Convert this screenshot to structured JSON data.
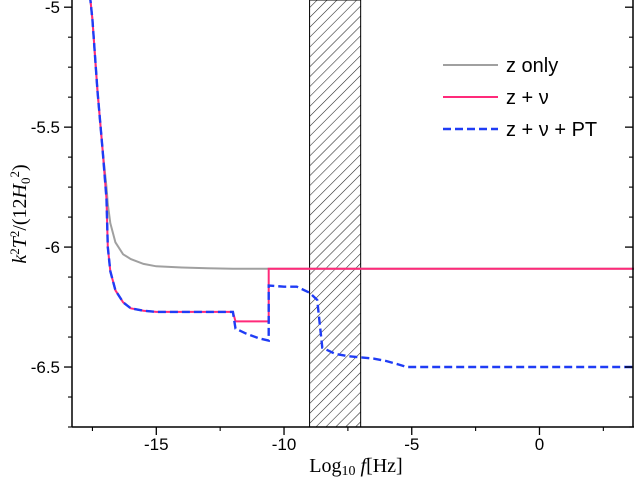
{
  "chart_data": {
    "type": "line",
    "xlabel": "Log₁₀ f[Hz]",
    "ylabel": "k²T²/(12H₀²)",
    "xlim": [
      -18.3,
      3.7
    ],
    "ylim": [
      -6.75,
      -4.97
    ],
    "x_ticks": [
      -15,
      -10,
      -5,
      0
    ],
    "x_tick_labels": [
      "-15",
      "-10",
      "-5",
      "0"
    ],
    "y_ticks": [
      -5,
      -5.5,
      -6,
      -6.5
    ],
    "y_tick_labels": [
      "-5",
      "-5.5",
      "-6",
      "-6.5"
    ],
    "shaded_band": {
      "x": [
        -9.0,
        -7.0
      ],
      "pattern": "hatched"
    },
    "grid": false,
    "legend_position": "top-right",
    "series": [
      {
        "name": "z only",
        "color": "#a0a0a0",
        "style": "solid",
        "x": [
          -17.6,
          -17.5,
          -17.3,
          -17.1,
          -16.95,
          -16.9,
          -16.8,
          -16.6,
          -16.3,
          -16.0,
          -15.5,
          -15.0,
          -14.0,
          -13.0,
          -12.0,
          -11.0,
          -10.6,
          3.7
        ],
        "y": [
          -4.95,
          -5.05,
          -5.35,
          -5.6,
          -5.75,
          -5.82,
          -5.9,
          -5.98,
          -6.03,
          -6.05,
          -6.07,
          -6.08,
          -6.085,
          -6.088,
          -6.09,
          -6.09,
          -6.09,
          -6.09
        ]
      },
      {
        "name": "z + ν",
        "color": "#ff2a7a",
        "style": "solid",
        "x": [
          -17.6,
          -17.5,
          -17.3,
          -17.1,
          -16.95,
          -16.9,
          -16.8,
          -16.6,
          -16.3,
          -16.0,
          -15.5,
          -15.0,
          -14.5,
          -14.0,
          -13.0,
          -12.0,
          -11.9,
          -10.6,
          -10.6,
          3.7
        ],
        "y": [
          -4.95,
          -5.05,
          -5.35,
          -5.6,
          -5.8,
          -6.0,
          -6.1,
          -6.18,
          -6.23,
          -6.255,
          -6.265,
          -6.27,
          -6.27,
          -6.27,
          -6.27,
          -6.27,
          -6.31,
          -6.31,
          -6.09,
          -6.09
        ]
      },
      {
        "name": "z + ν + PT",
        "color": "#1f3cf5",
        "style": "dashed",
        "x": [
          -17.6,
          -17.5,
          -17.3,
          -17.1,
          -16.95,
          -16.9,
          -16.8,
          -16.6,
          -16.3,
          -16.0,
          -15.5,
          -15.0,
          -14.5,
          -14.0,
          -13.0,
          -12.0,
          -11.9,
          -11.5,
          -11.0,
          -10.6,
          -10.6,
          -10.0,
          -9.5,
          -9.0,
          -8.7,
          -8.5,
          -8.3,
          -8.0,
          -7.5,
          -7.0,
          -6.5,
          -6.0,
          -5.5,
          -5.2,
          -4.0,
          3.7
        ],
        "y": [
          -4.95,
          -5.05,
          -5.35,
          -5.6,
          -5.8,
          -6.0,
          -6.1,
          -6.18,
          -6.23,
          -6.255,
          -6.265,
          -6.27,
          -6.27,
          -6.27,
          -6.27,
          -6.27,
          -6.34,
          -6.36,
          -6.38,
          -6.39,
          -6.16,
          -6.165,
          -6.165,
          -6.19,
          -6.22,
          -6.42,
          -6.43,
          -6.445,
          -6.455,
          -6.46,
          -6.465,
          -6.475,
          -6.49,
          -6.5,
          -6.5,
          -6.5
        ]
      }
    ]
  }
}
